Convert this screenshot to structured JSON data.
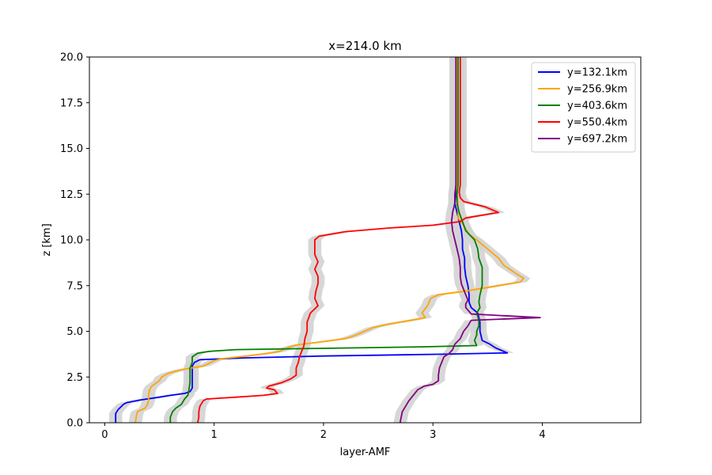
{
  "chart_data": {
    "type": "line",
    "title": "x=214.0 km",
    "xlabel": "layer-AMF",
    "ylabel": "z [km]",
    "xlim": [
      -0.14,
      4.9
    ],
    "ylim": [
      0,
      20
    ],
    "xticks": [
      0,
      1,
      2,
      3,
      4
    ],
    "yticks": [
      0.0,
      2.5,
      5.0,
      7.5,
      10.0,
      12.5,
      15.0,
      17.5,
      20.0
    ],
    "xtick_labels": [
      "0",
      "1",
      "2",
      "3",
      "4"
    ],
    "ytick_labels": [
      "0.0",
      "2.5",
      "5.0",
      "7.5",
      "10.0",
      "12.5",
      "15.0",
      "17.5",
      "20.0"
    ],
    "grid": false,
    "legend_position": "top-right",
    "uncertainty_band_color": "#d3d3d3",
    "series": [
      {
        "name": "y=132.1km",
        "color": "#0000ff",
        "points": [
          [
            0.1,
            0.0
          ],
          [
            0.1,
            0.5
          ],
          [
            0.12,
            0.7
          ],
          [
            0.17,
            1.0
          ],
          [
            0.2,
            1.1
          ],
          [
            0.33,
            1.25
          ],
          [
            0.5,
            1.4
          ],
          [
            0.6,
            1.5
          ],
          [
            0.73,
            1.6
          ],
          [
            0.78,
            1.7
          ],
          [
            0.8,
            1.9
          ],
          [
            0.8,
            2.3
          ],
          [
            0.8,
            2.7
          ],
          [
            0.8,
            3.1
          ],
          [
            0.82,
            3.3
          ],
          [
            0.87,
            3.45
          ],
          [
            1.3,
            3.55
          ],
          [
            2.0,
            3.65
          ],
          [
            3.1,
            3.75
          ],
          [
            3.68,
            3.82
          ],
          [
            3.57,
            4.1
          ],
          [
            3.52,
            4.3
          ],
          [
            3.45,
            4.5
          ],
          [
            3.43,
            5.0
          ],
          [
            3.43,
            5.5
          ],
          [
            3.41,
            6.0
          ],
          [
            3.35,
            6.3
          ],
          [
            3.33,
            6.6
          ],
          [
            3.33,
            7.0
          ],
          [
            3.32,
            7.5
          ],
          [
            3.3,
            8.0
          ],
          [
            3.29,
            8.5
          ],
          [
            3.29,
            9.0
          ],
          [
            3.27,
            9.5
          ],
          [
            3.27,
            10.0
          ],
          [
            3.26,
            10.5
          ],
          [
            3.24,
            11.0
          ],
          [
            3.22,
            11.5
          ],
          [
            3.2,
            12.0
          ],
          [
            3.21,
            12.5
          ],
          [
            3.22,
            13.0
          ],
          [
            3.22,
            14.0
          ],
          [
            3.22,
            15.0
          ],
          [
            3.22,
            16.0
          ],
          [
            3.22,
            17.0
          ],
          [
            3.22,
            18.0
          ],
          [
            3.22,
            19.0
          ],
          [
            3.22,
            20.0
          ]
        ]
      },
      {
        "name": "y=256.9km",
        "color": "#ffa500",
        "points": [
          [
            0.28,
            0.0
          ],
          [
            0.29,
            0.4
          ],
          [
            0.3,
            0.6
          ],
          [
            0.37,
            0.8
          ],
          [
            0.39,
            1.0
          ],
          [
            0.4,
            1.2
          ],
          [
            0.4,
            1.5
          ],
          [
            0.41,
            1.8
          ],
          [
            0.43,
            2.0
          ],
          [
            0.5,
            2.3
          ],
          [
            0.52,
            2.5
          ],
          [
            0.58,
            2.7
          ],
          [
            0.7,
            2.9
          ],
          [
            0.8,
            3.0
          ],
          [
            0.9,
            3.1
          ],
          [
            0.97,
            3.3
          ],
          [
            1.0,
            3.4
          ],
          [
            1.07,
            3.5
          ],
          [
            1.3,
            3.65
          ],
          [
            1.5,
            3.8
          ],
          [
            1.6,
            3.9
          ],
          [
            1.67,
            4.1
          ],
          [
            1.75,
            4.25
          ],
          [
            1.95,
            4.4
          ],
          [
            2.2,
            4.6
          ],
          [
            2.3,
            4.8
          ],
          [
            2.45,
            5.2
          ],
          [
            2.6,
            5.4
          ],
          [
            2.8,
            5.6
          ],
          [
            2.93,
            5.75
          ],
          [
            2.9,
            6.0
          ],
          [
            2.95,
            6.4
          ],
          [
            2.98,
            6.8
          ],
          [
            3.05,
            7.0
          ],
          [
            3.3,
            7.2
          ],
          [
            3.6,
            7.5
          ],
          [
            3.8,
            7.7
          ],
          [
            3.83,
            7.9
          ],
          [
            3.75,
            8.2
          ],
          [
            3.65,
            8.6
          ],
          [
            3.6,
            9.0
          ],
          [
            3.5,
            9.5
          ],
          [
            3.4,
            10.0
          ],
          [
            3.33,
            10.3
          ],
          [
            3.28,
            10.8
          ],
          [
            3.23,
            11.2
          ],
          [
            3.23,
            12.0
          ],
          [
            3.22,
            12.5
          ],
          [
            3.22,
            13.0
          ],
          [
            3.22,
            14.0
          ],
          [
            3.22,
            15.0
          ],
          [
            3.22,
            16.0
          ],
          [
            3.22,
            17.0
          ],
          [
            3.22,
            18.0
          ],
          [
            3.22,
            19.0
          ],
          [
            3.22,
            20.0
          ]
        ]
      },
      {
        "name": "y=403.6km",
        "color": "#008000",
        "points": [
          [
            0.6,
            0.0
          ],
          [
            0.6,
            0.3
          ],
          [
            0.62,
            0.6
          ],
          [
            0.65,
            0.8
          ],
          [
            0.7,
            1.0
          ],
          [
            0.73,
            1.3
          ],
          [
            0.76,
            1.5
          ],
          [
            0.77,
            1.8
          ],
          [
            0.78,
            2.2
          ],
          [
            0.78,
            2.6
          ],
          [
            0.78,
            3.0
          ],
          [
            0.8,
            3.3
          ],
          [
            0.8,
            3.6
          ],
          [
            0.85,
            3.8
          ],
          [
            0.95,
            3.9
          ],
          [
            1.2,
            4.0
          ],
          [
            2.0,
            4.07
          ],
          [
            2.9,
            4.15
          ],
          [
            3.4,
            4.22
          ],
          [
            3.38,
            4.5
          ],
          [
            3.4,
            4.8
          ],
          [
            3.4,
            5.0
          ],
          [
            3.42,
            5.3
          ],
          [
            3.42,
            5.6
          ],
          [
            3.4,
            6.0
          ],
          [
            3.43,
            6.3
          ],
          [
            3.42,
            6.6
          ],
          [
            3.43,
            7.0
          ],
          [
            3.45,
            7.5
          ],
          [
            3.45,
            8.0
          ],
          [
            3.45,
            8.5
          ],
          [
            3.42,
            9.0
          ],
          [
            3.41,
            9.5
          ],
          [
            3.38,
            10.0
          ],
          [
            3.3,
            10.5
          ],
          [
            3.27,
            11.0
          ],
          [
            3.24,
            11.5
          ],
          [
            3.22,
            12.0
          ],
          [
            3.22,
            12.5
          ],
          [
            3.23,
            13.0
          ],
          [
            3.23,
            14.0
          ],
          [
            3.23,
            15.0
          ],
          [
            3.23,
            16.0
          ],
          [
            3.23,
            17.0
          ],
          [
            3.23,
            18.0
          ],
          [
            3.23,
            19.0
          ],
          [
            3.23,
            20.0
          ]
        ]
      },
      {
        "name": "y=550.4km",
        "color": "#ff0000",
        "points": [
          [
            0.85,
            0.0
          ],
          [
            0.86,
            0.3
          ],
          [
            0.86,
            0.6
          ],
          [
            0.87,
            0.9
          ],
          [
            0.9,
            1.2
          ],
          [
            0.93,
            1.3
          ],
          [
            1.2,
            1.4
          ],
          [
            1.45,
            1.5
          ],
          [
            1.58,
            1.6
          ],
          [
            1.55,
            1.8
          ],
          [
            1.48,
            1.9
          ],
          [
            1.5,
            2.0
          ],
          [
            1.62,
            2.2
          ],
          [
            1.7,
            2.4
          ],
          [
            1.75,
            2.6
          ],
          [
            1.75,
            3.0
          ],
          [
            1.77,
            3.3
          ],
          [
            1.78,
            3.6
          ],
          [
            1.8,
            3.9
          ],
          [
            1.82,
            4.2
          ],
          [
            1.83,
            4.6
          ],
          [
            1.85,
            5.0
          ],
          [
            1.85,
            5.5
          ],
          [
            1.88,
            6.0
          ],
          [
            1.95,
            6.4
          ],
          [
            1.92,
            6.8
          ],
          [
            1.93,
            7.2
          ],
          [
            1.95,
            7.6
          ],
          [
            1.95,
            8.0
          ],
          [
            1.92,
            8.4
          ],
          [
            1.95,
            8.8
          ],
          [
            1.92,
            9.2
          ],
          [
            1.92,
            9.6
          ],
          [
            1.92,
            10.0
          ],
          [
            1.96,
            10.2
          ],
          [
            2.2,
            10.45
          ],
          [
            2.6,
            10.65
          ],
          [
            3.0,
            10.8
          ],
          [
            3.25,
            11.0
          ],
          [
            3.3,
            11.2
          ],
          [
            3.6,
            11.5
          ],
          [
            3.48,
            11.8
          ],
          [
            3.28,
            12.1
          ],
          [
            3.25,
            12.3
          ],
          [
            3.24,
            12.6
          ],
          [
            3.25,
            13.0
          ],
          [
            3.25,
            14.0
          ],
          [
            3.25,
            15.0
          ],
          [
            3.25,
            16.0
          ],
          [
            3.25,
            17.0
          ],
          [
            3.25,
            18.0
          ],
          [
            3.25,
            19.0
          ],
          [
            3.25,
            20.0
          ]
        ]
      },
      {
        "name": "y=697.2km",
        "color": "#800080",
        "points": [
          [
            2.7,
            0.0
          ],
          [
            2.71,
            0.3
          ],
          [
            2.72,
            0.6
          ],
          [
            2.75,
            0.9
          ],
          [
            2.78,
            1.2
          ],
          [
            2.82,
            1.5
          ],
          [
            2.86,
            1.8
          ],
          [
            2.92,
            2.0
          ],
          [
            3.0,
            2.1
          ],
          [
            3.05,
            2.3
          ],
          [
            3.05,
            2.6
          ],
          [
            3.06,
            3.0
          ],
          [
            3.08,
            3.3
          ],
          [
            3.1,
            3.6
          ],
          [
            3.15,
            3.8
          ],
          [
            3.18,
            4.0
          ],
          [
            3.2,
            4.3
          ],
          [
            3.25,
            4.6
          ],
          [
            3.28,
            5.0
          ],
          [
            3.32,
            5.3
          ],
          [
            3.35,
            5.6
          ],
          [
            3.98,
            5.75
          ],
          [
            3.35,
            5.95
          ],
          [
            3.3,
            6.3
          ],
          [
            3.3,
            6.5
          ],
          [
            3.32,
            6.7
          ],
          [
            3.3,
            7.0
          ],
          [
            3.28,
            7.3
          ],
          [
            3.26,
            7.6
          ],
          [
            3.25,
            8.0
          ],
          [
            3.25,
            8.5
          ],
          [
            3.24,
            9.0
          ],
          [
            3.22,
            9.5
          ],
          [
            3.2,
            10.0
          ],
          [
            3.18,
            10.5
          ],
          [
            3.17,
            11.0
          ],
          [
            3.18,
            11.5
          ],
          [
            3.2,
            12.0
          ],
          [
            3.2,
            12.5
          ],
          [
            3.21,
            13.0
          ],
          [
            3.21,
            14.0
          ],
          [
            3.21,
            15.0
          ],
          [
            3.21,
            16.0
          ],
          [
            3.21,
            17.0
          ],
          [
            3.21,
            18.0
          ],
          [
            3.21,
            19.0
          ],
          [
            3.21,
            20.0
          ]
        ]
      }
    ]
  }
}
